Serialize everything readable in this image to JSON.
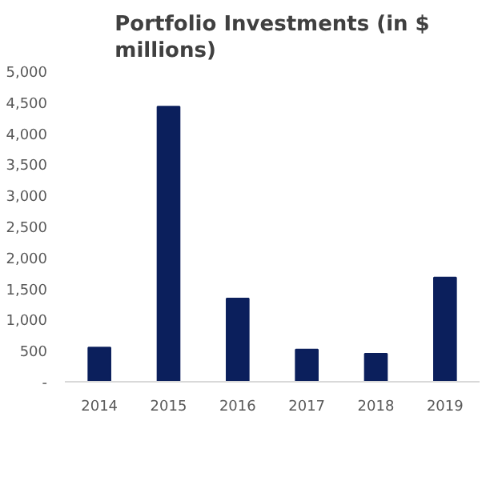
{
  "chart_data": {
    "type": "bar",
    "title": "Portfolio Investments (in $ millions)",
    "categories": [
      "2014",
      "2015",
      "2016",
      "2017",
      "2018",
      "2019"
    ],
    "values": [
      550,
      4430,
      1340,
      520,
      450,
      1680
    ],
    "color": "#0b1f5c",
    "ylim": [
      0,
      5000
    ],
    "yticks": [
      {
        "value": 0,
        "label": "-"
      },
      {
        "value": 500,
        "label": "500"
      },
      {
        "value": 1000,
        "label": "1,000"
      },
      {
        "value": 1500,
        "label": "1,500"
      },
      {
        "value": 2000,
        "label": "2,000"
      },
      {
        "value": 2500,
        "label": "2,500"
      },
      {
        "value": 3000,
        "label": "3,000"
      },
      {
        "value": 3500,
        "label": "3,500"
      },
      {
        "value": 4000,
        "label": "4,000"
      },
      {
        "value": 4500,
        "label": "4,500"
      },
      {
        "value": 5000,
        "label": "5,000"
      }
    ],
    "grid": false
  }
}
